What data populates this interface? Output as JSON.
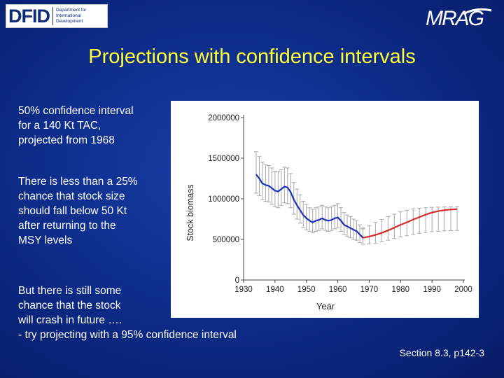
{
  "logo_dfid": {
    "mark": "DFID",
    "sub_lines": [
      "Department for",
      "International",
      "Development"
    ]
  },
  "logo_mrag": "MRAG",
  "title": "Projections with confidence intervals",
  "block1": [
    "50% confidence interval",
    "for a 140 Kt TAC,",
    "projected from 1968"
  ],
  "block2": [
    "There is less than a 25%",
    "chance that stock size",
    "should fall below 50 Kt",
    "after returning to the",
    "MSY levels"
  ],
  "block3": [
    "But there is still some",
    "chance that the stock",
    "will crash in future ….",
    "- try projecting with a 95% confidence interval"
  ],
  "footer": "Section 8.3, p142-3",
  "colors": {
    "title": "#ffff33",
    "historical": "#1f2fb8",
    "projected": "#d42a2a",
    "ci": "#a8a8a8"
  },
  "chart_data": {
    "type": "line",
    "xlabel": "Year",
    "ylabel": "Stock biomass",
    "xlim": [
      1930,
      2000
    ],
    "ylim": [
      0,
      2000000
    ],
    "xticks": [
      1930,
      1940,
      1950,
      1960,
      1970,
      1980,
      1990,
      2000
    ],
    "yticks": [
      0,
      500000,
      1000000,
      1500000,
      2000000
    ],
    "ytick_labels": [
      "0",
      "500000",
      "1000000",
      "1500000",
      "2000000"
    ],
    "grid": false,
    "series": [
      {
        "style": "historical",
        "x": [
          1934,
          1935,
          1936,
          1937,
          1938,
          1939,
          1940,
          1941,
          1942,
          1943,
          1944,
          1945,
          1946,
          1947,
          1948,
          1949,
          1950,
          1951,
          1952,
          1953,
          1954,
          1955,
          1956,
          1957,
          1958,
          1959,
          1960,
          1961,
          1962,
          1963,
          1964,
          1965,
          1966,
          1967,
          1968
        ],
        "y": [
          1300000,
          1250000,
          1190000,
          1170000,
          1160000,
          1130000,
          1100000,
          1090000,
          1120000,
          1150000,
          1140000,
          1080000,
          990000,
          920000,
          860000,
          800000,
          760000,
          730000,
          710000,
          730000,
          740000,
          760000,
          740000,
          730000,
          740000,
          760000,
          770000,
          730000,
          680000,
          660000,
          640000,
          620000,
          600000,
          560000,
          520000
        ],
        "ci_lower": [
          1070000,
          1040000,
          990000,
          970000,
          960000,
          930000,
          900000,
          890000,
          920000,
          950000,
          940000,
          890000,
          810000,
          750000,
          700000,
          650000,
          620000,
          600000,
          580000,
          600000,
          610000,
          630000,
          610000,
          600000,
          610000,
          630000,
          640000,
          600000,
          560000,
          540000,
          520000,
          500000,
          490000,
          460000,
          440000
        ],
        "ci_upper": [
          1580000,
          1520000,
          1450000,
          1420000,
          1410000,
          1380000,
          1340000,
          1330000,
          1360000,
          1390000,
          1380000,
          1310000,
          1200000,
          1120000,
          1050000,
          970000,
          930000,
          890000,
          870000,
          890000,
          900000,
          920000,
          900000,
          890000,
          900000,
          920000,
          940000,
          890000,
          830000,
          800000,
          780000,
          750000,
          730000,
          680000,
          630000
        ]
      },
      {
        "style": "projected",
        "x": [
          1968,
          1970,
          1972,
          1974,
          1976,
          1978,
          1980,
          1982,
          1984,
          1986,
          1988,
          1990,
          1992,
          1994,
          1996,
          1998
        ],
        "y": [
          520000,
          535000,
          555000,
          580000,
          610000,
          645000,
          680000,
          710000,
          745000,
          775000,
          805000,
          830000,
          848000,
          860000,
          868000,
          872000
        ],
        "ci_lower": [
          440000,
          445000,
          455000,
          470000,
          490000,
          510000,
          530000,
          545000,
          560000,
          575000,
          585000,
          595000,
          600000,
          605000,
          608000,
          610000
        ],
        "ci_upper": [
          640000,
          670000,
          710000,
          745000,
          780000,
          810000,
          840000,
          860000,
          875000,
          885000,
          890000,
          895000,
          898000,
          900000,
          902000,
          903000
        ]
      }
    ]
  }
}
